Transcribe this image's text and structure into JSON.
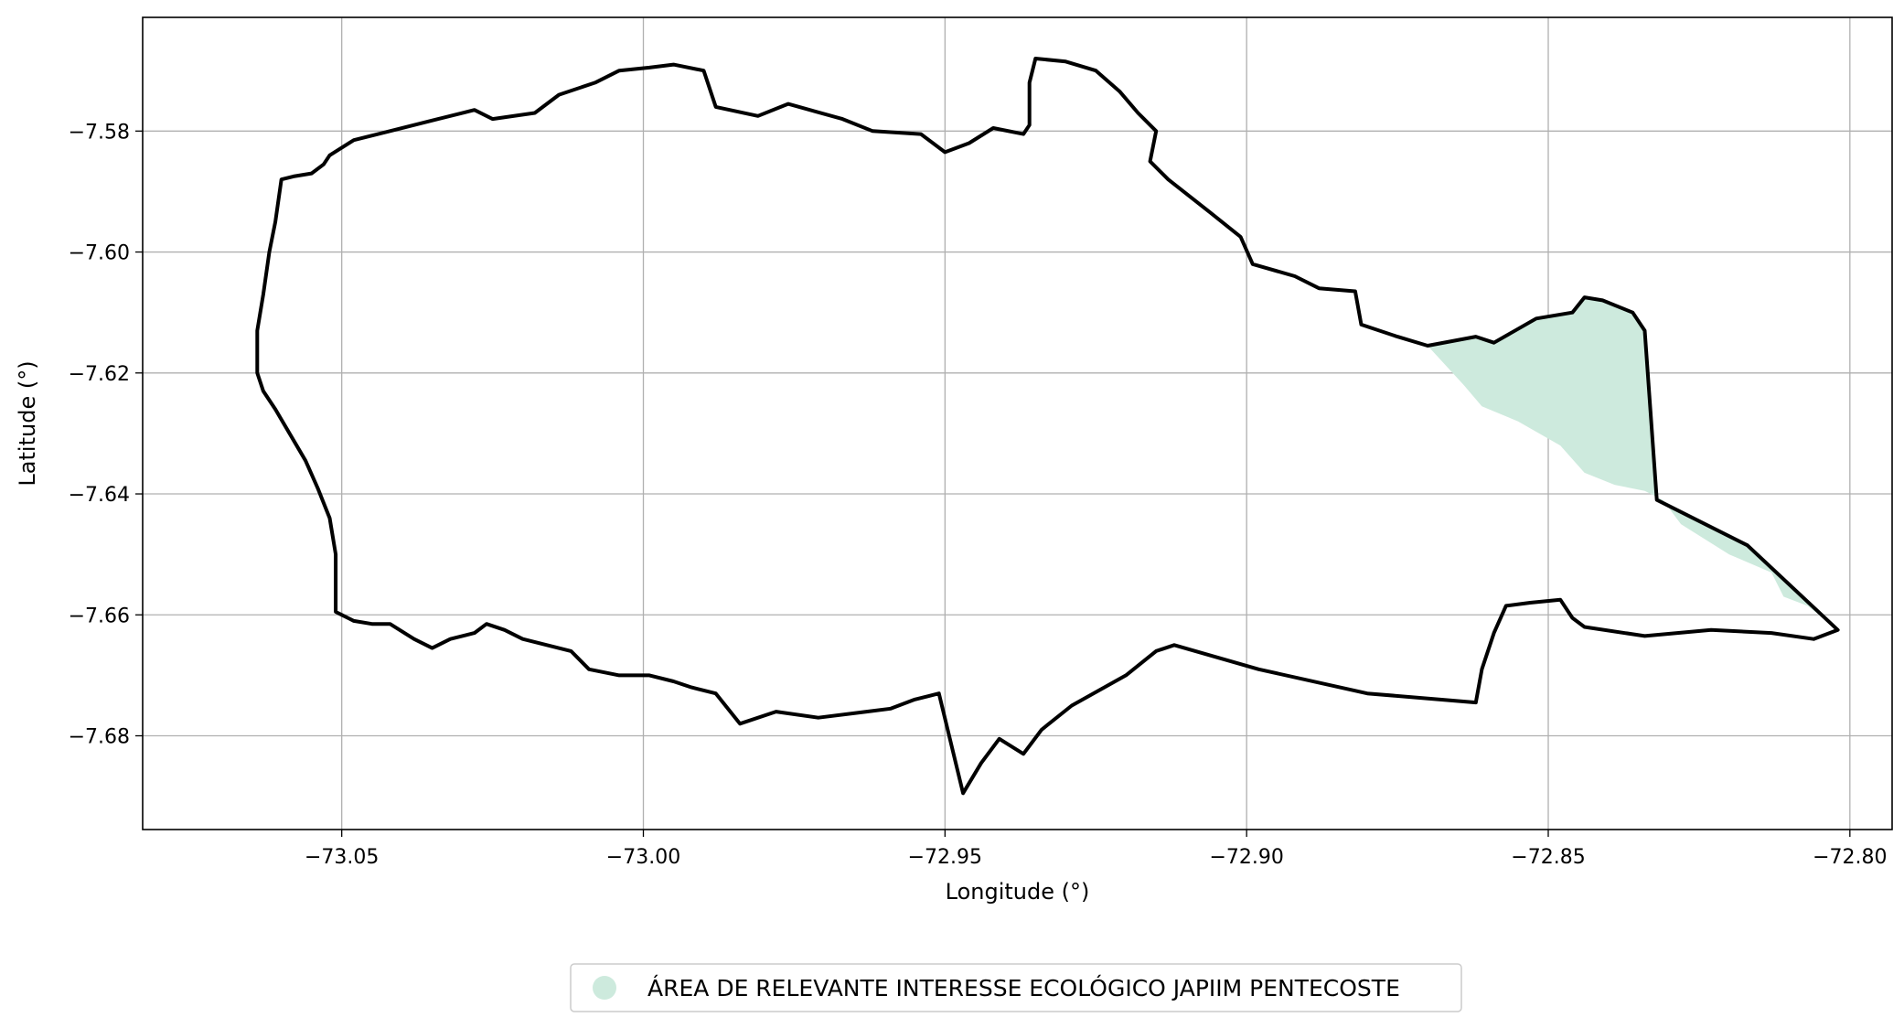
{
  "chart_data": {
    "type": "map",
    "xlabel": "Longitude (°)",
    "ylabel": "Latitude (°)",
    "xlim": [
      -73.083,
      -72.793
    ],
    "ylim": [
      -7.6955,
      -7.5612
    ],
    "x_ticks": [
      -73.05,
      -73.0,
      -72.95,
      -72.9,
      -72.85,
      -72.8
    ],
    "x_tick_labels": [
      "−73.05",
      "−73.00",
      "−72.95",
      "−72.90",
      "−72.85",
      "−72.80"
    ],
    "y_ticks": [
      -7.58,
      -7.6,
      -7.62,
      -7.64,
      -7.66,
      -7.68
    ],
    "y_tick_labels": [
      "−7.58",
      "−7.60",
      "−7.62",
      "−7.64",
      "−7.66",
      "−7.68"
    ],
    "grid": true,
    "boundary_color": "#000000",
    "boundary_coords": [
      [
        -73.064,
        -7.613
      ],
      [
        -73.063,
        -7.607
      ],
      [
        -73.062,
        -7.6
      ],
      [
        -73.061,
        -7.595
      ],
      [
        -73.06,
        -7.588
      ],
      [
        -73.058,
        -7.5875
      ],
      [
        -73.055,
        -7.587
      ],
      [
        -73.053,
        -7.5855
      ],
      [
        -73.052,
        -7.584
      ],
      [
        -73.048,
        -7.5815
      ],
      [
        -73.042,
        -7.58
      ],
      [
        -73.034,
        -7.578
      ],
      [
        -73.028,
        -7.5765
      ],
      [
        -73.025,
        -7.578
      ],
      [
        -73.018,
        -7.577
      ],
      [
        -73.014,
        -7.574
      ],
      [
        -73.008,
        -7.572
      ],
      [
        -73.004,
        -7.57
      ],
      [
        -72.999,
        -7.5695
      ],
      [
        -72.995,
        -7.569
      ],
      [
        -72.99,
        -7.57
      ],
      [
        -72.988,
        -7.576
      ],
      [
        -72.981,
        -7.5775
      ],
      [
        -72.976,
        -7.5755
      ],
      [
        -72.967,
        -7.578
      ],
      [
        -72.962,
        -7.58
      ],
      [
        -72.954,
        -7.5805
      ],
      [
        -72.95,
        -7.5835
      ],
      [
        -72.946,
        -7.582
      ],
      [
        -72.942,
        -7.5795
      ],
      [
        -72.937,
        -7.5805
      ],
      [
        -72.936,
        -7.579
      ],
      [
        -72.936,
        -7.572
      ],
      [
        -72.935,
        -7.568
      ],
      [
        -72.93,
        -7.5685
      ],
      [
        -72.925,
        -7.57
      ],
      [
        -72.921,
        -7.5735
      ],
      [
        -72.918,
        -7.577
      ],
      [
        -72.915,
        -7.58
      ],
      [
        -72.916,
        -7.585
      ],
      [
        -72.913,
        -7.588
      ],
      [
        -72.906,
        -7.5935
      ],
      [
        -72.901,
        -7.5975
      ],
      [
        -72.899,
        -7.602
      ],
      [
        -72.892,
        -7.604
      ],
      [
        -72.888,
        -7.606
      ],
      [
        -72.882,
        -7.6065
      ],
      [
        -72.881,
        -7.612
      ],
      [
        -72.875,
        -7.614
      ],
      [
        -72.87,
        -7.6155
      ],
      [
        -72.862,
        -7.614
      ],
      [
        -72.859,
        -7.615
      ],
      [
        -72.852,
        -7.611
      ],
      [
        -72.846,
        -7.61
      ],
      [
        -72.844,
        -7.6075
      ],
      [
        -72.841,
        -7.608
      ],
      [
        -72.836,
        -7.61
      ],
      [
        -72.834,
        -7.613
      ],
      [
        -72.832,
        -7.641
      ],
      [
        -72.817,
        -7.6485
      ],
      [
        -72.802,
        -7.6625
      ],
      [
        -72.806,
        -7.664
      ],
      [
        -72.813,
        -7.663
      ],
      [
        -72.823,
        -7.6625
      ],
      [
        -72.834,
        -7.6635
      ],
      [
        -72.844,
        -7.662
      ],
      [
        -72.846,
        -7.6605
      ],
      [
        -72.848,
        -7.6575
      ],
      [
        -72.853,
        -7.658
      ],
      [
        -72.857,
        -7.6585
      ],
      [
        -72.859,
        -7.663
      ],
      [
        -72.861,
        -7.669
      ],
      [
        -72.862,
        -7.6745
      ],
      [
        -72.88,
        -7.673
      ],
      [
        -72.898,
        -7.669
      ],
      [
        -72.912,
        -7.665
      ],
      [
        -72.915,
        -7.666
      ],
      [
        -72.92,
        -7.67
      ],
      [
        -72.929,
        -7.675
      ],
      [
        -72.934,
        -7.679
      ],
      [
        -72.937,
        -7.683
      ],
      [
        -72.941,
        -7.6805
      ],
      [
        -72.944,
        -7.6845
      ],
      [
        -72.947,
        -7.6895
      ],
      [
        -72.951,
        -7.673
      ],
      [
        -72.955,
        -7.674
      ],
      [
        -72.959,
        -7.6755
      ],
      [
        -72.963,
        -7.676
      ],
      [
        -72.971,
        -7.677
      ],
      [
        -72.978,
        -7.676
      ],
      [
        -72.984,
        -7.678
      ],
      [
        -72.986,
        -7.6755
      ],
      [
        -72.988,
        -7.673
      ],
      [
        -72.992,
        -7.672
      ],
      [
        -72.995,
        -7.671
      ],
      [
        -72.999,
        -7.67
      ],
      [
        -73.004,
        -7.67
      ],
      [
        -73.009,
        -7.669
      ],
      [
        -73.012,
        -7.666
      ],
      [
        -73.016,
        -7.665
      ],
      [
        -73.02,
        -7.664
      ],
      [
        -73.023,
        -7.6625
      ],
      [
        -73.026,
        -7.6615
      ],
      [
        -73.028,
        -7.663
      ],
      [
        -73.032,
        -7.664
      ],
      [
        -73.035,
        -7.6655
      ],
      [
        -73.038,
        -7.664
      ],
      [
        -73.042,
        -7.6615
      ],
      [
        -73.045,
        -7.6615
      ],
      [
        -73.048,
        -7.661
      ],
      [
        -73.05,
        -7.66
      ],
      [
        -73.051,
        -7.6595
      ],
      [
        -73.051,
        -7.65
      ],
      [
        -73.052,
        -7.644
      ],
      [
        -73.054,
        -7.639
      ],
      [
        -73.056,
        -7.6345
      ],
      [
        -73.061,
        -7.626
      ],
      [
        -73.063,
        -7.623
      ],
      [
        -73.064,
        -7.62
      ],
      [
        -73.064,
        -7.613
      ]
    ],
    "series": [
      {
        "name": "ÁREA DE RELEVANTE INTERESSE ECOLÓGICO JAPIIM PENTECOSTE",
        "color": "#cdeadd",
        "coords": [
          [
            -72.87,
            -7.6155
          ],
          [
            -72.862,
            -7.614
          ],
          [
            -72.859,
            -7.615
          ],
          [
            -72.852,
            -7.611
          ],
          [
            -72.846,
            -7.61
          ],
          [
            -72.844,
            -7.6075
          ],
          [
            -72.841,
            -7.608
          ],
          [
            -72.836,
            -7.61
          ],
          [
            -72.834,
            -7.613
          ],
          [
            -72.832,
            -7.641
          ],
          [
            -72.817,
            -7.6485
          ],
          [
            -72.802,
            -7.6625
          ],
          [
            -72.807,
            -7.6585
          ],
          [
            -72.811,
            -7.657
          ],
          [
            -72.813,
            -7.653
          ],
          [
            -72.82,
            -7.65
          ],
          [
            -72.828,
            -7.645
          ],
          [
            -72.831,
            -7.641
          ],
          [
            -72.834,
            -7.6395
          ],
          [
            -72.839,
            -7.6385
          ],
          [
            -72.844,
            -7.6365
          ],
          [
            -72.848,
            -7.632
          ],
          [
            -72.855,
            -7.628
          ],
          [
            -72.861,
            -7.6255
          ],
          [
            -72.864,
            -7.622
          ],
          [
            -72.87,
            -7.6155
          ]
        ]
      }
    ],
    "legend": {
      "placement": "bottom-center",
      "entries": [
        "ÁREA DE RELEVANTE INTERESSE ECOLÓGICO JAPIIM PENTECOSTE"
      ]
    }
  }
}
